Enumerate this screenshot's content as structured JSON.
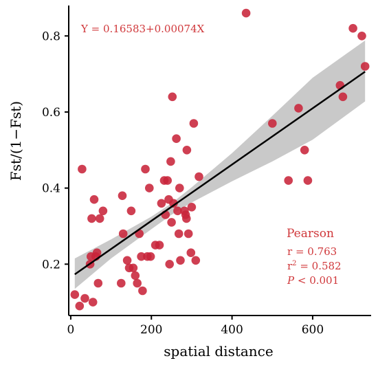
{
  "chart_data": {
    "type": "scatter",
    "xlabel": "spatial distance",
    "ylabel": "Fst/(1−Fst)",
    "xlim": [
      -5,
      745
    ],
    "ylim": [
      0.065,
      0.88
    ],
    "x_ticks": [
      0,
      200,
      400,
      600
    ],
    "y_ticks": [
      0.2,
      0.4,
      0.6,
      0.8
    ],
    "x_tick_labels": [
      "0",
      "200",
      "400",
      "600"
    ],
    "y_tick_labels": [
      "0.2",
      "0.4",
      "0.6",
      "0.8"
    ],
    "grid": false,
    "equation": "Y = 0.16583+0.00074X",
    "regression": {
      "intercept": 0.16583,
      "slope": 0.00074,
      "x_range": [
        10,
        730
      ]
    },
    "confidence_band": [
      {
        "x": 10,
        "lower": 0.135,
        "upper": 0.215
      },
      {
        "x": 100,
        "lower": 0.215,
        "upper": 0.265
      },
      {
        "x": 200,
        "lower": 0.292,
        "upper": 0.325
      },
      {
        "x": 250,
        "lower": 0.33,
        "upper": 0.36
      },
      {
        "x": 300,
        "lower": 0.362,
        "upper": 0.402
      },
      {
        "x": 400,
        "lower": 0.418,
        "upper": 0.492
      },
      {
        "x": 500,
        "lower": 0.47,
        "upper": 0.59
      },
      {
        "x": 600,
        "lower": 0.527,
        "upper": 0.69
      },
      {
        "x": 730,
        "lower": 0.628,
        "upper": 0.788
      }
    ],
    "stats": {
      "title": "Pearson",
      "r_label": "r = 0.763",
      "r2_prefix": "r",
      "r2_sup": "2",
      "r2_value": " = 0.582",
      "p_symbol": "P",
      "p_value": " < 0.001"
    },
    "points": [
      {
        "x": 10,
        "y": 0.12
      },
      {
        "x": 22,
        "y": 0.09
      },
      {
        "x": 28,
        "y": 0.45
      },
      {
        "x": 35,
        "y": 0.11
      },
      {
        "x": 48,
        "y": 0.2
      },
      {
        "x": 50,
        "y": 0.22
      },
      {
        "x": 52,
        "y": 0.32
      },
      {
        "x": 55,
        "y": 0.1
      },
      {
        "x": 58,
        "y": 0.37
      },
      {
        "x": 62,
        "y": 0.22
      },
      {
        "x": 65,
        "y": 0.23
      },
      {
        "x": 68,
        "y": 0.15
      },
      {
        "x": 72,
        "y": 0.32
      },
      {
        "x": 80,
        "y": 0.34
      },
      {
        "x": 125,
        "y": 0.15
      },
      {
        "x": 128,
        "y": 0.38
      },
      {
        "x": 130,
        "y": 0.28
      },
      {
        "x": 140,
        "y": 0.21
      },
      {
        "x": 145,
        "y": 0.19
      },
      {
        "x": 150,
        "y": 0.34
      },
      {
        "x": 155,
        "y": 0.19
      },
      {
        "x": 160,
        "y": 0.17
      },
      {
        "x": 165,
        "y": 0.15
      },
      {
        "x": 170,
        "y": 0.28
      },
      {
        "x": 175,
        "y": 0.22
      },
      {
        "x": 178,
        "y": 0.13
      },
      {
        "x": 185,
        "y": 0.45
      },
      {
        "x": 190,
        "y": 0.22
      },
      {
        "x": 195,
        "y": 0.4
      },
      {
        "x": 198,
        "y": 0.22
      },
      {
        "x": 210,
        "y": 0.25
      },
      {
        "x": 220,
        "y": 0.25
      },
      {
        "x": 225,
        "y": 0.36
      },
      {
        "x": 232,
        "y": 0.42
      },
      {
        "x": 235,
        "y": 0.33
      },
      {
        "x": 240,
        "y": 0.42
      },
      {
        "x": 243,
        "y": 0.37
      },
      {
        "x": 245,
        "y": 0.2
      },
      {
        "x": 248,
        "y": 0.47
      },
      {
        "x": 250,
        "y": 0.31
      },
      {
        "x": 252,
        "y": 0.64
      },
      {
        "x": 255,
        "y": 0.36
      },
      {
        "x": 262,
        "y": 0.53
      },
      {
        "x": 265,
        "y": 0.34
      },
      {
        "x": 268,
        "y": 0.28
      },
      {
        "x": 270,
        "y": 0.4
      },
      {
        "x": 272,
        "y": 0.21
      },
      {
        "x": 282,
        "y": 0.34
      },
      {
        "x": 285,
        "y": 0.33
      },
      {
        "x": 287,
        "y": 0.32
      },
      {
        "x": 288,
        "y": 0.5
      },
      {
        "x": 292,
        "y": 0.28
      },
      {
        "x": 298,
        "y": 0.23
      },
      {
        "x": 300,
        "y": 0.35
      },
      {
        "x": 305,
        "y": 0.57
      },
      {
        "x": 310,
        "y": 0.21
      },
      {
        "x": 318,
        "y": 0.43
      },
      {
        "x": 435,
        "y": 0.86
      },
      {
        "x": 500,
        "y": 0.57
      },
      {
        "x": 540,
        "y": 0.42
      },
      {
        "x": 565,
        "y": 0.61
      },
      {
        "x": 580,
        "y": 0.5
      },
      {
        "x": 588,
        "y": 0.42
      },
      {
        "x": 668,
        "y": 0.67
      },
      {
        "x": 675,
        "y": 0.64
      },
      {
        "x": 700,
        "y": 0.82
      },
      {
        "x": 722,
        "y": 0.8
      },
      {
        "x": 730,
        "y": 0.72
      }
    ]
  },
  "colors": {
    "point_fill": "#c8243a",
    "regression_line": "#000000",
    "band_fill": "#c9c9c9",
    "text_red": "#d0383b"
  }
}
